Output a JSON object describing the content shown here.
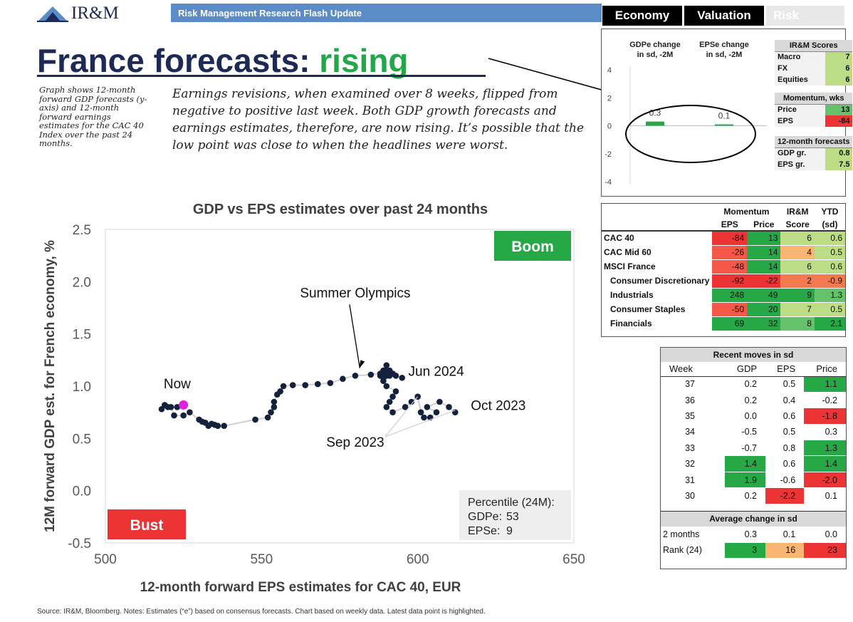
{
  "header": {
    "logo_text": "IR&M",
    "flash_title": "Risk Management Research Flash Update",
    "tabs": [
      {
        "label": "Economy",
        "active": true
      },
      {
        "label": "Valuation",
        "active": true
      },
      {
        "label": "Risk",
        "active": false
      }
    ]
  },
  "title": {
    "main": "France forecasts: ",
    "accent": "rising"
  },
  "side_note": "Graph shows 12-month forward GDP forecasts (y-axis) and 12-month forward earnings estimates for the CAC 40 Index over the past 24 months.",
  "commentary": "Earnings revisions, when examined over 8 weeks, flipped from negative to positive last week. Both GDP growth forecasts and earnings estimates, therefore, are now rising. It’s possible that the low point was close to when the headlines were worst.",
  "source": "Source: IR&M, Bloomberg. Notes: Estimates (“e”) based on consensus forecasts. Chart based on weekly data. Latest data point is highlighted.",
  "chart_data": [
    {
      "type": "scatter",
      "title": "GDP vs EPS estimates over past 24 months",
      "xlabel": "12-month forward EPS estimates for CAC 40, EUR",
      "ylabel": "12M forward GDP est. for French economy, %",
      "xlim": [
        500,
        650
      ],
      "ylim": [
        -0.5,
        2.5
      ],
      "xticks": [
        "500",
        "550",
        "600",
        "650"
      ],
      "yticks": [
        "-0.5",
        "0.0",
        "0.5",
        "1.0",
        "1.5",
        "2.0",
        "2.5"
      ],
      "grid": false,
      "x": [
        612,
        610,
        607,
        603,
        606,
        604,
        602,
        601,
        600,
        598,
        596,
        592,
        590,
        591,
        592,
        593,
        590,
        589,
        590,
        591,
        590,
        589,
        591,
        595,
        593,
        592,
        589,
        588,
        589,
        590,
        588,
        585,
        580,
        576,
        572,
        568,
        564,
        560,
        557,
        556,
        555,
        554,
        554,
        553,
        552,
        548,
        538,
        536,
        535,
        534,
        533,
        532,
        531,
        530,
        527,
        525,
        522,
        521,
        519,
        518,
        520,
        523,
        525
      ],
      "y": [
        0.75,
        0.8,
        0.85,
        0.8,
        0.75,
        0.7,
        0.7,
        0.75,
        0.9,
        0.85,
        0.8,
        0.75,
        0.8,
        0.85,
        0.9,
        0.95,
        1.0,
        1.05,
        1.1,
        1.15,
        1.2,
        1.15,
        1.1,
        1.08,
        1.1,
        1.12,
        1.08,
        1.1,
        1.12,
        1.15,
        1.12,
        1.11,
        1.1,
        1.07,
        1.03,
        1.02,
        1.01,
        1.01,
        1.0,
        0.95,
        0.92,
        0.85,
        0.8,
        0.75,
        0.7,
        0.68,
        0.62,
        0.62,
        0.63,
        0.64,
        0.62,
        0.65,
        0.66,
        0.68,
        0.75,
        0.72,
        0.72,
        0.8,
        0.82,
        0.78,
        0.8,
        0.8,
        0.82
      ],
      "highlight_index": 62,
      "annotations": [
        {
          "text": "Now",
          "x": 523,
          "y": 0.98
        },
        {
          "text": "Summer Olympics",
          "x": 580,
          "y": 1.85,
          "arrow_x": 581,
          "arrow_y": 1.12
        },
        {
          "text": "Jun 2024",
          "x": 597,
          "y": 1.1
        },
        {
          "text": "Oct 2023",
          "x": 617,
          "y": 0.77
        },
        {
          "text": "Sep 2023",
          "x": 580,
          "y": 0.42,
          "leader_to": [
            [
              600,
              0.9
            ],
            [
              612,
              0.77
            ]
          ]
        }
      ],
      "quadrants": {
        "boom": "Boom",
        "bust": "Bust"
      },
      "percentile_box": {
        "title": "Percentile (24M):",
        "lines": [
          {
            "label": "GDPe:",
            "value": "53"
          },
          {
            "label": "EPSe:",
            "value": "9"
          }
        ]
      },
      "colors": {
        "point": "#14213d",
        "highlight": "#e020e0",
        "line": "#d0d0d0",
        "boom": "#27a847",
        "bust": "#ec3434"
      }
    },
    {
      "type": "bar",
      "categories": [
        "GDPe change in sd, -2M",
        "EPSe change in sd, -2M"
      ],
      "values": [
        0.3,
        0.1
      ],
      "value_labels": [
        "0.3",
        "0.1"
      ],
      "ylim": [
        -4,
        4
      ],
      "yticks": [
        "4",
        "2",
        "0",
        "-2",
        "-4"
      ],
      "colors": {
        "bar": "#27a847"
      }
    }
  ],
  "scores": {
    "title": "IR&M Scores",
    "items": [
      {
        "label": "Macro",
        "value": "7",
        "cls": "g-light"
      },
      {
        "label": "FX",
        "value": "6",
        "cls": "g-light"
      },
      {
        "label": "Equities",
        "value": "6",
        "cls": "g-light"
      }
    ],
    "momentum_title": "Momentum, wks",
    "momentum": [
      {
        "label": "Price",
        "value": "13",
        "cls": "g-mid"
      },
      {
        "label": "EPS",
        "value": "-84",
        "cls": "r-dark"
      }
    ],
    "forecasts_title": "12-month forecasts",
    "forecasts": [
      {
        "label": "GDP gr.",
        "value": "0.8",
        "cls": "g-light"
      },
      {
        "label": "EPS gr.",
        "value": "7.5",
        "cls": "g-light"
      }
    ]
  },
  "index_table": {
    "group_headers": {
      "momentum": "Momentum",
      "irm": "IR&M",
      "ytd": "YTD"
    },
    "sub_headers": {
      "eps": "EPS",
      "price": "Price",
      "score": "Score",
      "sd": "(sd)"
    },
    "rows": [
      {
        "name": "CAC 40",
        "indent": false,
        "eps": "-84",
        "eps_c": "r-dark",
        "price": "13",
        "price_c": "g-dark",
        "score": "6",
        "score_c": "g-light",
        "ytd": "0.6",
        "ytd_c": "g-light"
      },
      {
        "name": "CAC Mid 60",
        "indent": false,
        "eps": "-26",
        "eps_c": "r-mid",
        "price": "14",
        "price_c": "g-dark",
        "score": "4",
        "score_c": "o-lt",
        "ytd": "0.5",
        "ytd_c": "g-light"
      },
      {
        "name": "MSCI France",
        "indent": false,
        "eps": "-48",
        "eps_c": "r-mid",
        "price": "14",
        "price_c": "g-dark",
        "score": "6",
        "score_c": "g-light",
        "ytd": "0.6",
        "ytd_c": "g-light"
      },
      {
        "name": "Consumer Discretionary",
        "indent": true,
        "eps": "-92",
        "eps_c": "r-dark",
        "price": "-22",
        "price_c": "r-dark",
        "score": "2",
        "score_c": "o-mid",
        "ytd": "-0.9",
        "ytd_c": "o-mid"
      },
      {
        "name": "Industrials",
        "indent": true,
        "eps": "248",
        "eps_c": "g-dark",
        "price": "49",
        "price_c": "g-dark",
        "score": "9",
        "score_c": "g-dark",
        "ytd": "1.3",
        "ytd_c": "g-mid"
      },
      {
        "name": "Consumer Staples",
        "indent": true,
        "eps": "-50",
        "eps_c": "r-mid",
        "price": "20",
        "price_c": "g-dark",
        "score": "7",
        "score_c": "g-light",
        "ytd": "0.5",
        "ytd_c": "g-light"
      },
      {
        "name": "Financials",
        "indent": true,
        "eps": "69",
        "eps_c": "g-dark",
        "price": "32",
        "price_c": "g-dark",
        "score": "8",
        "score_c": "g-mid",
        "ytd": "2.1",
        "ytd_c": "g-dark"
      }
    ]
  },
  "moves_table": {
    "title": "Recent moves in sd",
    "headers": [
      "Week",
      "GDP",
      "EPS",
      "Price"
    ],
    "rows": [
      {
        "week": "37",
        "gdp": "0.2",
        "gdp_c": "",
        "eps": "0.5",
        "eps_c": "",
        "price": "1.1",
        "price_c": "g-dark"
      },
      {
        "week": "36",
        "gdp": "0.2",
        "gdp_c": "",
        "eps": "0.4",
        "eps_c": "",
        "price": "-0.2",
        "price_c": ""
      },
      {
        "week": "35",
        "gdp": "0.0",
        "gdp_c": "",
        "eps": "0.6",
        "eps_c": "",
        "price": "-1.8",
        "price_c": "r-dark"
      },
      {
        "week": "34",
        "gdp": "-0.5",
        "gdp_c": "",
        "eps": "0.5",
        "eps_c": "",
        "price": "0.3",
        "price_c": ""
      },
      {
        "week": "33",
        "gdp": "-0.7",
        "gdp_c": "",
        "eps": "0.8",
        "eps_c": "",
        "price": "1.3",
        "price_c": "g-dark"
      },
      {
        "week": "32",
        "gdp": "1.4",
        "gdp_c": "g-dark",
        "eps": "0.6",
        "eps_c": "",
        "price": "1.4",
        "price_c": "g-dark"
      },
      {
        "week": "31",
        "gdp": "1.9",
        "gdp_c": "g-dark",
        "eps": "-0.6",
        "eps_c": "",
        "price": "-2.0",
        "price_c": "r-dark"
      },
      {
        "week": "30",
        "gdp": "0.2",
        "gdp_c": "",
        "eps": "-2.2",
        "eps_c": "r-dark",
        "price": "0.1",
        "price_c": ""
      }
    ],
    "avg_title": "Average change in sd",
    "avg_rows": [
      {
        "label": "2 months",
        "gdp": "0.3",
        "gdp_c": "",
        "eps": "0.1",
        "eps_c": "",
        "price": "0.0",
        "price_c": ""
      },
      {
        "label": "Rank (24)",
        "gdp": "3",
        "gdp_c": "g-dark",
        "eps": "16",
        "eps_c": "o-lt",
        "price": "23",
        "price_c": "r-dark"
      }
    ]
  }
}
